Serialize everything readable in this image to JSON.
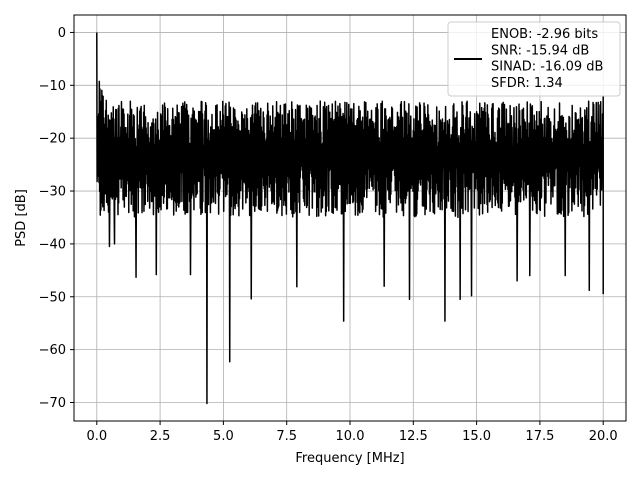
{
  "chart_data": {
    "type": "line",
    "xlabel": "Frequency [MHz]",
    "ylabel": "PSD [dB]",
    "xlim": [
      -0.9,
      20.9
    ],
    "ylim": [
      -73.5,
      3.3
    ],
    "xticks": [
      0.0,
      2.5,
      5.0,
      7.5,
      10.0,
      12.5,
      15.0,
      17.5,
      20.0
    ],
    "xtick_labels": [
      "0.0",
      "2.5",
      "5.0",
      "7.5",
      "10.0",
      "12.5",
      "15.0",
      "17.5",
      "20.0"
    ],
    "yticks": [
      0,
      -10,
      -20,
      -30,
      -40,
      -50,
      -60,
      -70
    ],
    "ytick_labels": [
      "0",
      "−10",
      "−20",
      "−30",
      "−40",
      "−50",
      "−60",
      "−70"
    ],
    "grid": true,
    "legend_position": "top-right",
    "series": [
      {
        "name": "ENOB: -2.96 bits\nSNR: -15.94 dB\nSINAD: -16.09 dB\nSFDR: 1.34",
        "color": "#000000",
        "x_range": [
          0.0,
          20.0
        ],
        "noise_band_db": [
          -35,
          -13
        ],
        "notable_points": [
          {
            "x": 0.0,
            "y": 0.0
          },
          {
            "x": 0.05,
            "y": -25.0
          },
          {
            "x": 0.5,
            "y": -40.5
          },
          {
            "x": 0.7,
            "y": -40.0
          },
          {
            "x": 1.55,
            "y": -46.3
          },
          {
            "x": 2.35,
            "y": -45.8
          },
          {
            "x": 3.7,
            "y": -45.8
          },
          {
            "x": 4.35,
            "y": -70.2
          },
          {
            "x": 5.25,
            "y": -62.3
          },
          {
            "x": 6.1,
            "y": -50.4
          },
          {
            "x": 7.9,
            "y": -48.1
          },
          {
            "x": 9.75,
            "y": -54.6
          },
          {
            "x": 11.35,
            "y": -48.0
          },
          {
            "x": 12.35,
            "y": -50.5
          },
          {
            "x": 13.75,
            "y": -54.6
          },
          {
            "x": 14.35,
            "y": -50.5
          },
          {
            "x": 14.8,
            "y": -49.8
          },
          {
            "x": 16.6,
            "y": -47.0
          },
          {
            "x": 17.1,
            "y": -46.0
          },
          {
            "x": 18.5,
            "y": -46.0
          },
          {
            "x": 19.45,
            "y": -48.8
          },
          {
            "x": 20.0,
            "y": -49.5
          },
          {
            "x": 20.0,
            "y": -12.0
          }
        ]
      }
    ]
  },
  "legend": {
    "lines": [
      "ENOB: -2.96 bits",
      "SNR: -15.94 dB",
      "SINAD: -16.09 dB",
      "SFDR: 1.34"
    ]
  },
  "colors": {
    "line": "#000000",
    "grid": "#b0b0b0",
    "background": "#ffffff"
  }
}
